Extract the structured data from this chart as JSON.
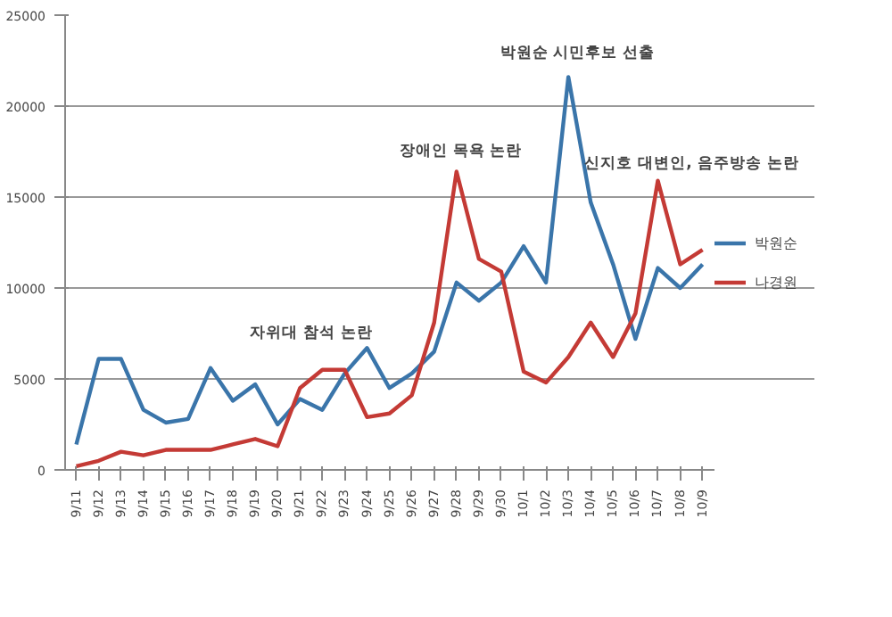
{
  "chart_data": {
    "type": "line",
    "categories": [
      "9/11",
      "9/12",
      "9/13",
      "9/14",
      "9/15",
      "9/16",
      "9/17",
      "9/18",
      "9/19",
      "9/20",
      "9/21",
      "9/22",
      "9/23",
      "9/24",
      "9/25",
      "9/26",
      "9/27",
      "9/28",
      "9/29",
      "9/30",
      "10/1",
      "10/2",
      "10/3",
      "10/4",
      "10/5",
      "10/6",
      "10/7",
      "10/8",
      "10/9"
    ],
    "series": [
      {
        "name": "박원순",
        "color": "#3a75aa",
        "values": [
          1400,
          6100,
          6100,
          3300,
          2600,
          2800,
          5600,
          3800,
          4700,
          2500,
          3900,
          3300,
          5300,
          6700,
          4500,
          5300,
          6500,
          10300,
          9300,
          10300,
          12300,
          10300,
          21600,
          14700,
          11300,
          7200,
          11100,
          10000,
          11300
        ]
      },
      {
        "name": "나경원",
        "color": "#c43a35",
        "values": [
          200,
          500,
          1000,
          800,
          1100,
          1100,
          1100,
          1400,
          1700,
          1300,
          4500,
          5500,
          5500,
          2900,
          3100,
          4100,
          8100,
          16400,
          11600,
          10900,
          5400,
          4800,
          6200,
          8100,
          6200,
          8600,
          15900,
          11300,
          12100
        ]
      }
    ],
    "ylim": [
      0,
      25000
    ],
    "yticks": [
      0,
      5000,
      10000,
      15000,
      20000,
      25000
    ],
    "grid": "y",
    "legend": "right",
    "marker": "none",
    "line_style": "solid",
    "annotations": [
      "자위대 참석 논란",
      "장애인 목욕 논란",
      "박원순 시민후보 선출",
      "신지호 대변인, 음주방송 논란"
    ]
  }
}
